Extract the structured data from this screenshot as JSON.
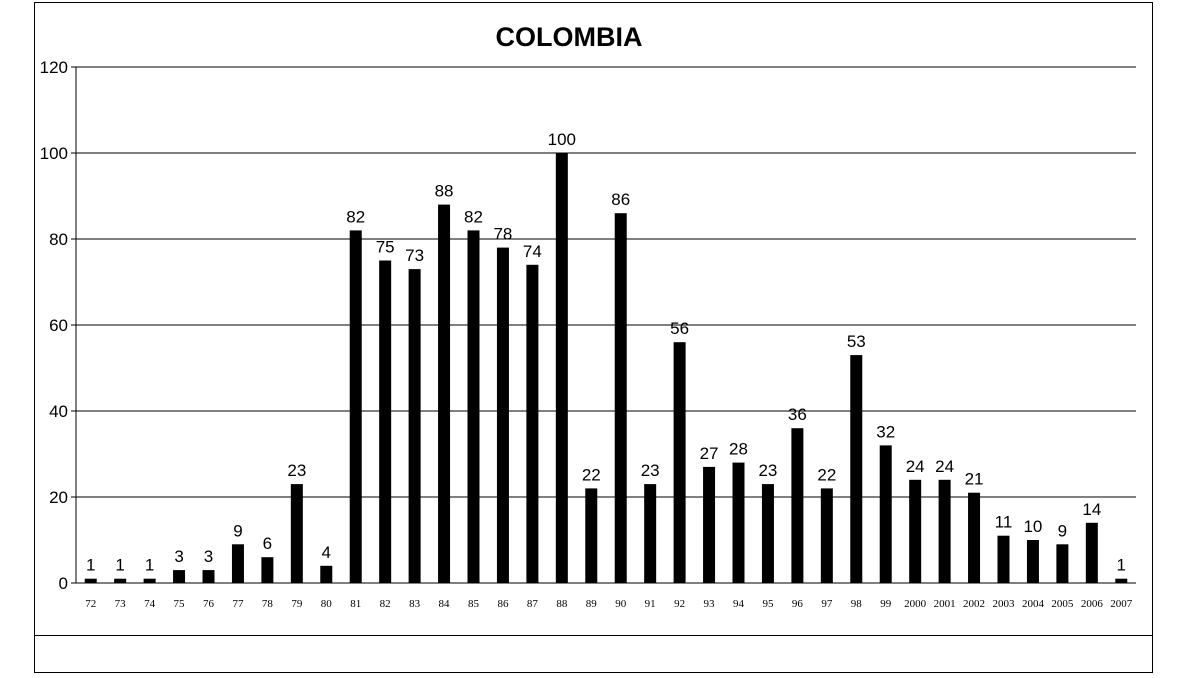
{
  "chart_data": {
    "type": "bar",
    "title": "COLOMBIA",
    "xlabel": "",
    "ylabel": "",
    "ylim": [
      0,
      120
    ],
    "yticks": [
      "0",
      "20",
      "40",
      "60",
      "80",
      "100",
      "120"
    ],
    "grid": true,
    "legend": "none",
    "bar_color": "#000000",
    "categories": [
      "72",
      "73",
      "74",
      "75",
      "76",
      "77",
      "78",
      "79",
      "80",
      "81",
      "82",
      "83",
      "84",
      "85",
      "86",
      "87",
      "88",
      "89",
      "90",
      "91",
      "92",
      "93",
      "94",
      "95",
      "96",
      "97",
      "98",
      "99",
      "2000",
      "2001",
      "2002",
      "2003",
      "2004",
      "2005",
      "2006",
      "2007"
    ],
    "values": [
      1,
      1,
      1,
      3,
      3,
      9,
      6,
      23,
      4,
      82,
      75,
      73,
      88,
      82,
      78,
      74,
      100,
      22,
      86,
      23,
      56,
      27,
      28,
      23,
      36,
      22,
      53,
      32,
      24,
      24,
      21,
      11,
      10,
      9,
      14,
      1
    ]
  }
}
